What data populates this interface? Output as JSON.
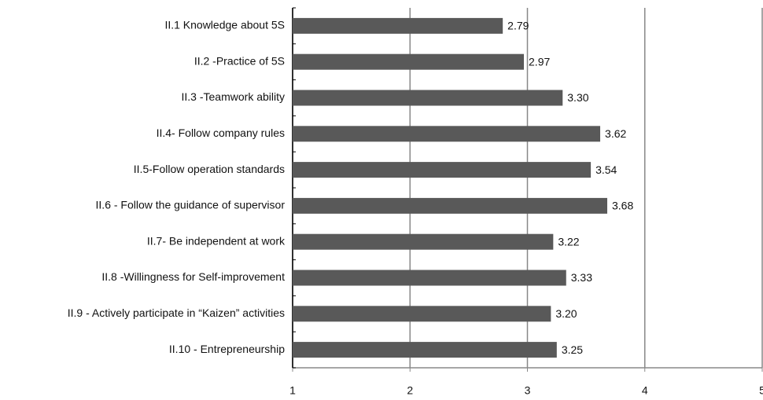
{
  "chart_data": {
    "type": "bar",
    "orientation": "horizontal",
    "categories": [
      "II.1 Knowledge about 5S",
      "II.2 -Practice of 5S",
      "II.3 -Teamwork ability",
      "II.4- Follow company rules",
      "II.5-Follow operation standards",
      "II.6 - Follow the guidance of supervisor",
      "II.7- Be independent at work",
      "II.8 -Willingness for Self-improvement",
      "II.9 - Actively participate in “Kaizen” activities",
      "II.10 - Entrepreneurship"
    ],
    "values": [
      2.79,
      2.97,
      3.3,
      3.62,
      3.54,
      3.68,
      3.22,
      3.33,
      3.2,
      3.25
    ],
    "value_labels": [
      "2.79",
      "2.97",
      "3.30",
      "3.62",
      "3.54",
      "3.68",
      "3.22",
      "3.33",
      "3.20",
      "3.25"
    ],
    "color": "#595959",
    "xlim": [
      1,
      5
    ],
    "xticks": [
      1,
      2,
      3,
      4,
      5
    ],
    "grid": true
  }
}
